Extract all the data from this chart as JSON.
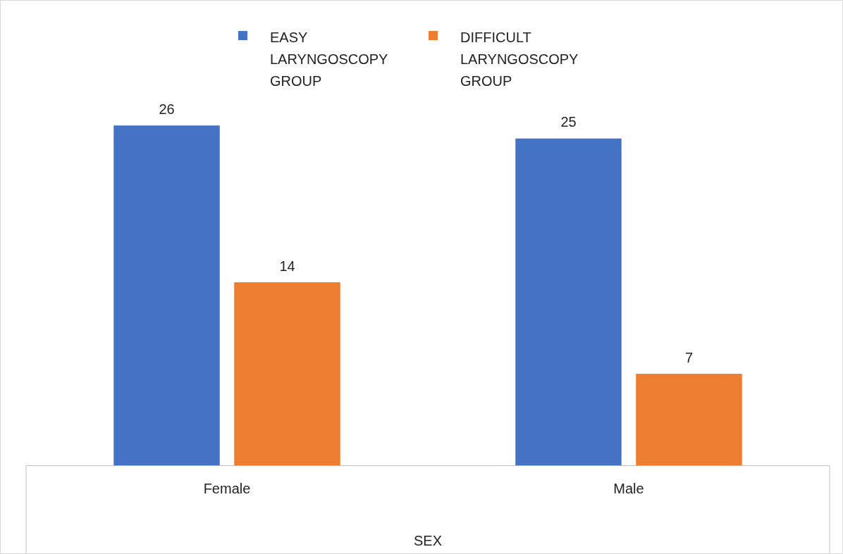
{
  "chart_data": {
    "type": "bar",
    "xlabel": "SEX",
    "categories": [
      "Female",
      "Male"
    ],
    "series": [
      {
        "name": "EASY LARYNGOSCOPY GROUP",
        "color": "#4472c4",
        "values": [
          26,
          25
        ]
      },
      {
        "name": "DIFFICULT LARYNGOSCOPY GROUP",
        "color": "#ed7d31",
        "values": [
          14,
          7
        ]
      }
    ],
    "data_labels": true,
    "legend": "top",
    "grid": false,
    "tick_labels": "x"
  }
}
